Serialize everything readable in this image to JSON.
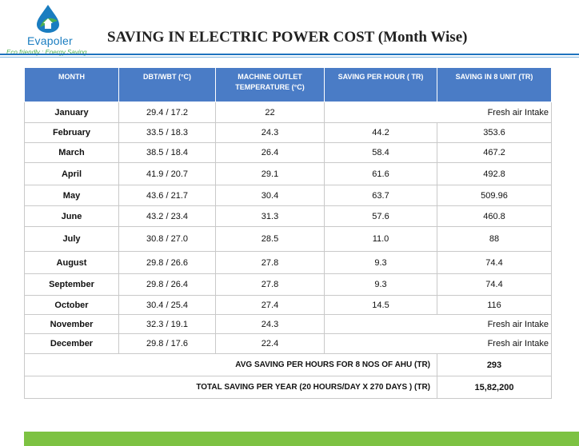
{
  "logo": {
    "name": "Evapoler",
    "tagline": "Eco friendly : Energy Saving",
    "colors": {
      "drop": "#1a7dc0",
      "leaf": "#4caf50"
    }
  },
  "title": "SAVING IN ELECTRIC POWER COST (Month Wise)",
  "table": {
    "headers": [
      "MONTH",
      "DBT/WBT (°C)",
      "MACHINE OUTLET TEMPERATURE (°C)",
      "SAVING PER HOUR ( TR)",
      "SAVING  IN 8 UNIT (TR)"
    ],
    "rows": [
      {
        "month": "January",
        "dbt": "29.4 / 17.2",
        "outlet": "22",
        "note": "Fresh air Intake"
      },
      {
        "month": "February",
        "dbt": "33.5 / 18.3",
        "outlet": "24.3",
        "per_hour": "44.2",
        "eight_unit": "353.6"
      },
      {
        "month": "March",
        "dbt": "38.5 / 18.4",
        "outlet": "26.4",
        "per_hour": "58.4",
        "eight_unit": "467.2"
      },
      {
        "month": "April",
        "dbt": "41.9 / 20.7",
        "outlet": "29.1",
        "per_hour": "61.6",
        "eight_unit": "492.8"
      },
      {
        "month": "May",
        "dbt": "43.6 / 21.7",
        "outlet": "30.4",
        "per_hour": "63.7",
        "eight_unit": "509.96"
      },
      {
        "month": "June",
        "dbt": "43.2 / 23.4",
        "outlet": "31.3",
        "per_hour": "57.6",
        "eight_unit": "460.8"
      },
      {
        "month": "July",
        "dbt": "30.8 / 27.0",
        "outlet": "28.5",
        "per_hour": "11.0",
        "eight_unit": "88"
      },
      {
        "month": "August",
        "dbt": "29.8 / 26.6",
        "outlet": "27.8",
        "per_hour": "9.3",
        "eight_unit": "74.4"
      },
      {
        "month": "September",
        "dbt": "29.8 / 26.4",
        "outlet": "27.8",
        "per_hour": "9.3",
        "eight_unit": "74.4"
      },
      {
        "month": "October",
        "dbt": "30.4 / 25.4",
        "outlet": "27.4",
        "per_hour": "14.5",
        "eight_unit": "116"
      },
      {
        "month": "November",
        "dbt": "32.3 / 19.1",
        "outlet": "24.3",
        "note": "Fresh air Intake"
      },
      {
        "month": "December",
        "dbt": "29.8 / 17.6",
        "outlet": "22.4",
        "note": "Fresh air Intake"
      }
    ],
    "summary": [
      {
        "label": "AVG SAVING PER HOURS FOR 8 NOS OF AHU (TR)",
        "value": "293"
      },
      {
        "label": "TOTAL SAVING PER YEAR (20 HOURS/DAY X 270 DAYS ) (TR)",
        "value": "15,82,200"
      }
    ]
  },
  "theme": {
    "header_bg": "#4a7cc6",
    "rule": "#1e73be",
    "bottom_bar": "#7dc242"
  }
}
